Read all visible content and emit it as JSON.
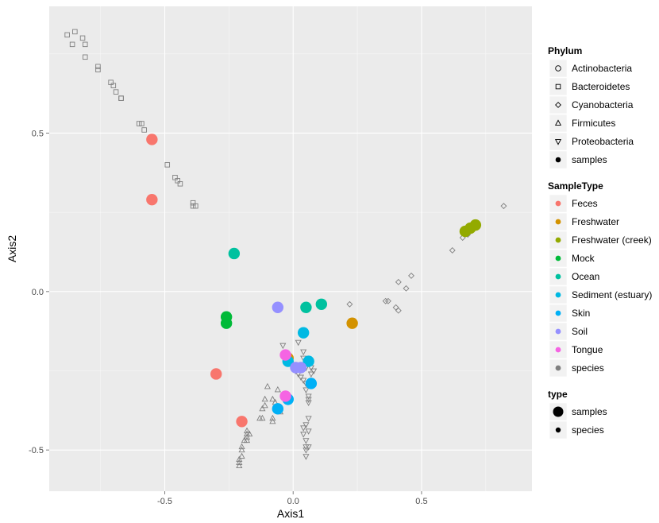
{
  "chart_data": {
    "type": "scatter",
    "xlabel": "Axis1",
    "ylabel": "Axis2",
    "xlim": [
      -0.95,
      0.93
    ],
    "ylim": [
      -0.63,
      0.9
    ],
    "x_ticks": [
      -0.5,
      0.0,
      0.5
    ],
    "x_tick_labels": [
      "-0.5",
      "0.0",
      "0.5"
    ],
    "y_ticks": [
      -0.5,
      0.0,
      0.5
    ],
    "y_tick_labels": [
      "-0.5",
      "0.0",
      "0.5"
    ],
    "grid": true,
    "panel_background": "#ebebeb",
    "legend_position": "right",
    "legends": [
      {
        "title": "Phylum",
        "entries": [
          {
            "label": "Actinobacteria",
            "shape": "circle-open"
          },
          {
            "label": "Bacteroidetes",
            "shape": "square-open"
          },
          {
            "label": "Cyanobacteria",
            "shape": "diamond-open"
          },
          {
            "label": "Firmicutes",
            "shape": "triangle-up-open"
          },
          {
            "label": "Proteobacteria",
            "shape": "triangle-down-open"
          },
          {
            "label": "samples",
            "shape": "dot"
          }
        ]
      },
      {
        "title": "SampleType",
        "entries": [
          {
            "label": "Feces",
            "color": "#F8766D"
          },
          {
            "label": "Freshwater",
            "color": "#D39200"
          },
          {
            "label": "Freshwater (creek)",
            "color": "#93AA00"
          },
          {
            "label": "Mock",
            "color": "#00BA38"
          },
          {
            "label": "Ocean",
            "color": "#00C19F"
          },
          {
            "label": "Sediment (estuary)",
            "color": "#00B9E3"
          },
          {
            "label": "Skin",
            "color": "#00B0F6"
          },
          {
            "label": "Soil",
            "color": "#9590FF"
          },
          {
            "label": "Tongue",
            "color": "#F564E3"
          },
          {
            "label": "species",
            "color": "#7F7F7F"
          }
        ]
      },
      {
        "title": "type",
        "entries": [
          {
            "label": "samples",
            "size": "large"
          },
          {
            "label": "species",
            "size": "small"
          }
        ]
      }
    ],
    "series": [
      {
        "name": "Feces",
        "type": "samples",
        "color": "#F8766D",
        "points": [
          [
            -0.55,
            0.48
          ],
          [
            -0.55,
            0.29
          ],
          [
            -0.3,
            -0.26
          ],
          [
            -0.2,
            -0.41
          ]
        ]
      },
      {
        "name": "Freshwater",
        "type": "samples",
        "color": "#D39200",
        "points": [
          [
            0.23,
            -0.1
          ],
          [
            -0.02,
            -0.21
          ]
        ]
      },
      {
        "name": "Freshwater (creek)",
        "type": "samples",
        "color": "#93AA00",
        "points": [
          [
            0.67,
            0.19
          ],
          [
            0.69,
            0.2
          ],
          [
            0.71,
            0.21
          ]
        ]
      },
      {
        "name": "Mock",
        "type": "samples",
        "color": "#00BA38",
        "points": [
          [
            -0.26,
            -0.08
          ],
          [
            -0.26,
            -0.1
          ]
        ]
      },
      {
        "name": "Ocean",
        "type": "samples",
        "color": "#00C19F",
        "points": [
          [
            -0.23,
            0.12
          ],
          [
            0.05,
            -0.05
          ],
          [
            0.11,
            -0.04
          ]
        ]
      },
      {
        "name": "Sediment (estuary)",
        "type": "samples",
        "color": "#00B9E3",
        "points": [
          [
            0.04,
            -0.13
          ],
          [
            0.06,
            -0.22
          ],
          [
            -0.02,
            -0.22
          ]
        ]
      },
      {
        "name": "Skin",
        "type": "samples",
        "color": "#00B0F6",
        "points": [
          [
            0.07,
            -0.29
          ],
          [
            -0.02,
            -0.34
          ],
          [
            -0.06,
            -0.37
          ]
        ]
      },
      {
        "name": "Soil",
        "type": "samples",
        "color": "#9590FF",
        "points": [
          [
            -0.06,
            -0.05
          ],
          [
            0.01,
            -0.24
          ],
          [
            0.03,
            -0.24
          ]
        ]
      },
      {
        "name": "Tongue",
        "type": "samples",
        "color": "#F564E3",
        "points": [
          [
            -0.03,
            -0.2
          ],
          [
            -0.03,
            -0.33
          ]
        ]
      },
      {
        "name": "Bacteroidetes",
        "type": "species",
        "color": "#7F7F7F",
        "shape": "square-open",
        "points": [
          [
            -0.88,
            0.81
          ],
          [
            -0.85,
            0.82
          ],
          [
            -0.82,
            0.8
          ],
          [
            -0.81,
            0.78
          ],
          [
            -0.86,
            0.78
          ],
          [
            -0.81,
            0.74
          ],
          [
            -0.76,
            0.71
          ],
          [
            -0.76,
            0.7
          ],
          [
            -0.71,
            0.66
          ],
          [
            -0.7,
            0.65
          ],
          [
            -0.69,
            0.63
          ],
          [
            -0.67,
            0.61
          ],
          [
            -0.67,
            0.61
          ],
          [
            -0.6,
            0.53
          ],
          [
            -0.59,
            0.53
          ],
          [
            -0.58,
            0.51
          ],
          [
            -0.49,
            0.4
          ],
          [
            -0.46,
            0.36
          ],
          [
            -0.45,
            0.35
          ],
          [
            -0.44,
            0.34
          ],
          [
            -0.39,
            0.28
          ],
          [
            -0.39,
            0.27
          ],
          [
            -0.38,
            0.27
          ]
        ]
      },
      {
        "name": "Cyanobacteria",
        "type": "species",
        "color": "#7F7F7F",
        "shape": "diamond-open",
        "points": [
          [
            0.82,
            0.27
          ],
          [
            0.62,
            0.13
          ],
          [
            0.66,
            0.17
          ],
          [
            0.68,
            0.18
          ],
          [
            0.46,
            0.05
          ],
          [
            0.41,
            0.03
          ],
          [
            0.44,
            0.01
          ],
          [
            0.37,
            -0.03
          ],
          [
            0.36,
            -0.03
          ],
          [
            0.4,
            -0.05
          ],
          [
            0.41,
            -0.06
          ],
          [
            0.22,
            -0.04
          ]
        ]
      },
      {
        "name": "Firmicutes",
        "type": "species",
        "color": "#7F7F7F",
        "shape": "triangle-up-open",
        "points": [
          [
            -0.1,
            -0.3
          ],
          [
            -0.11,
            -0.34
          ],
          [
            -0.11,
            -0.36
          ],
          [
            -0.12,
            -0.37
          ],
          [
            -0.08,
            -0.34
          ],
          [
            -0.07,
            -0.35
          ],
          [
            -0.08,
            -0.4
          ],
          [
            -0.08,
            -0.41
          ],
          [
            -0.12,
            -0.4
          ],
          [
            -0.13,
            -0.4
          ],
          [
            -0.18,
            -0.44
          ],
          [
            -0.18,
            -0.45
          ],
          [
            -0.18,
            -0.46
          ],
          [
            -0.18,
            -0.47
          ],
          [
            -0.2,
            -0.49
          ],
          [
            -0.2,
            -0.5
          ],
          [
            -0.2,
            -0.52
          ],
          [
            -0.21,
            -0.53
          ],
          [
            -0.21,
            -0.54
          ],
          [
            -0.21,
            -0.55
          ],
          [
            -0.19,
            -0.47
          ],
          [
            -0.17,
            -0.45
          ],
          [
            -0.06,
            -0.31
          ],
          [
            -0.05,
            -0.38
          ]
        ]
      },
      {
        "name": "Proteobacteria",
        "type": "species",
        "color": "#7F7F7F",
        "shape": "triangle-down-open",
        "points": [
          [
            -0.04,
            -0.17
          ],
          [
            0.0,
            -0.23
          ],
          [
            0.01,
            -0.25
          ],
          [
            0.02,
            -0.26
          ],
          [
            0.03,
            -0.27
          ],
          [
            0.04,
            -0.28
          ],
          [
            0.05,
            -0.29
          ],
          [
            0.05,
            -0.31
          ],
          [
            0.06,
            -0.33
          ],
          [
            0.06,
            -0.34
          ],
          [
            0.06,
            -0.35
          ],
          [
            0.07,
            -0.26
          ],
          [
            0.08,
            -0.25
          ],
          [
            0.07,
            -0.24
          ],
          [
            0.04,
            -0.21
          ],
          [
            0.05,
            -0.24
          ],
          [
            0.06,
            -0.4
          ],
          [
            0.05,
            -0.42
          ],
          [
            0.04,
            -0.43
          ],
          [
            0.04,
            -0.45
          ],
          [
            0.05,
            -0.47
          ],
          [
            0.05,
            -0.49
          ],
          [
            0.05,
            -0.5
          ],
          [
            0.06,
            -0.49
          ],
          [
            0.05,
            -0.52
          ],
          [
            0.04,
            -0.19
          ],
          [
            0.02,
            -0.16
          ],
          [
            0.06,
            -0.44
          ]
        ]
      }
    ]
  }
}
